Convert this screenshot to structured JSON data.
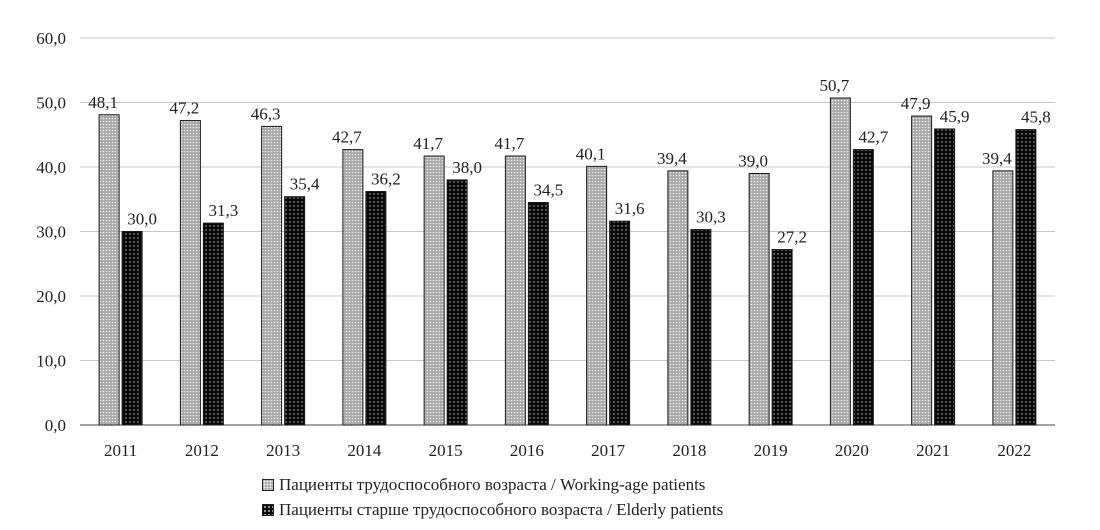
{
  "chart_data": {
    "type": "bar",
    "categories": [
      "2011",
      "2012",
      "2013",
      "2014",
      "2015",
      "2016",
      "2017",
      "2018",
      "2019",
      "2020",
      "2021",
      "2022"
    ],
    "series": [
      {
        "name": "Пациенты трудоспособного возраста / Working-age patients",
        "values": [
          48.1,
          47.2,
          46.3,
          42.7,
          41.7,
          41.7,
          40.1,
          39.4,
          39.0,
          50.7,
          47.9,
          39.4
        ],
        "value_labels": [
          "48,1",
          "47,2",
          "46,3",
          "42,7",
          "41,7",
          "41,7",
          "40,1",
          "39,4",
          "39,0",
          "50,7",
          "47,9",
          "39,4"
        ],
        "color": "#a8a8a8"
      },
      {
        "name": "Пациенты старше трудоспособного возраста / Elderly patients",
        "values": [
          30.0,
          31.3,
          35.4,
          36.2,
          38.0,
          34.5,
          31.6,
          30.3,
          27.2,
          42.7,
          45.9,
          45.8
        ],
        "value_labels": [
          "30,0",
          "31,3",
          "35,4",
          "36,2",
          "38,0",
          "34,5",
          "31,6",
          "30,3",
          "27,2",
          "42,7",
          "45,9",
          "45,8"
        ],
        "color": "#0a0a0a"
      }
    ],
    "y_ticks": [
      "0,0",
      "10,0",
      "20,0",
      "30,0",
      "40,0",
      "50,0",
      "60,0"
    ],
    "ylim": [
      0,
      60
    ],
    "grid": true,
    "legend_position": "bottom",
    "title": "",
    "xlabel": "",
    "ylabel": ""
  }
}
